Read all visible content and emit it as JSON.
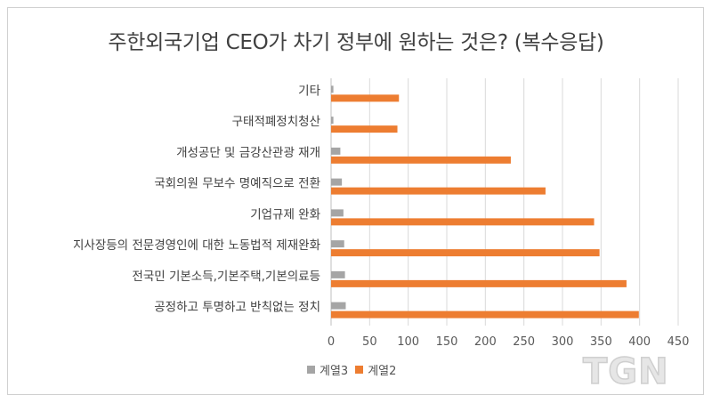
{
  "chart_data": {
    "type": "bar",
    "orientation": "horizontal",
    "title": "주한외국기업 CEO가 차기 정부에 원하는 것은? (복수응답)",
    "categories": [
      "기타",
      "구태적폐정치청산",
      "개성공단 및 금강산관광 재개",
      "국회의원 무보수 명예직으로 전환",
      "기업규제 완화",
      "지사장등의 전문경영인에 대한 노동법적 제재완화",
      "전국민 기본소득,기본주택,기본의료등",
      "공정하고 투명하고 반칙없는 정치"
    ],
    "series": [
      {
        "name": "계열3",
        "color": "#a5a5a5",
        "values": [
          3,
          3,
          12,
          14,
          16,
          17,
          18,
          19
        ]
      },
      {
        "name": "계열2",
        "color": "#ed7d31",
        "values": [
          88,
          86,
          233,
          278,
          341,
          348,
          383,
          399
        ]
      }
    ],
    "xlim": [
      0,
      450
    ],
    "xticks": [
      0,
      50,
      100,
      150,
      200,
      250,
      300,
      350,
      400,
      450
    ],
    "grid": true,
    "legend_position": "bottom"
  },
  "watermark": "TGN"
}
